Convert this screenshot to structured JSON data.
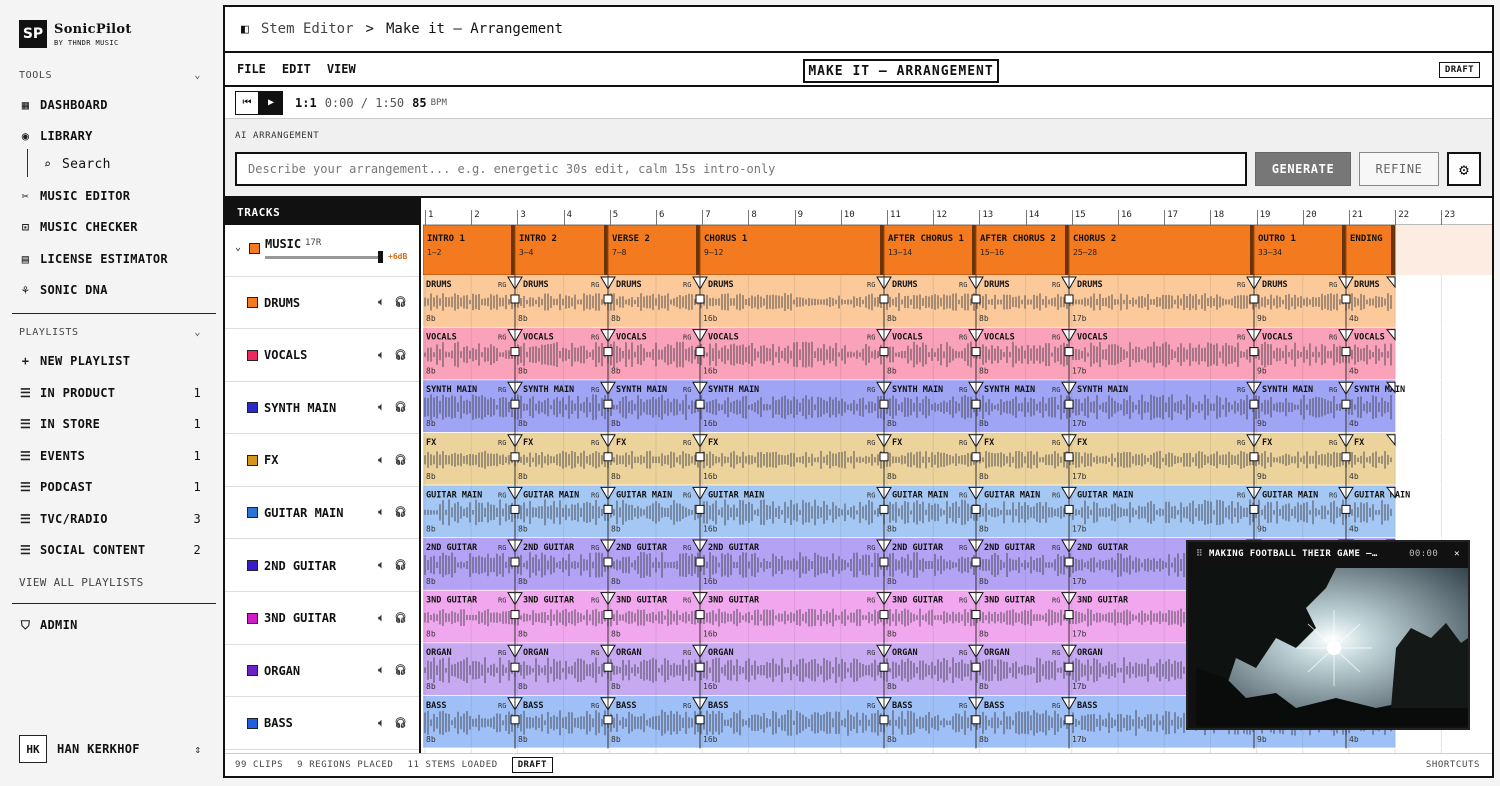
{
  "app": {
    "name": "SonicPilot",
    "sub": "BY THNDR MUSIC",
    "mark": "SP"
  },
  "sidebar": {
    "tools_label": "TOOLS",
    "tools": [
      {
        "label": "DASHBOARD",
        "icon": "grid-icon"
      },
      {
        "label": "LIBRARY",
        "icon": "library-icon"
      },
      {
        "label": "Search",
        "icon": "search-icon"
      },
      {
        "label": "MUSIC EDITOR",
        "icon": "scissors-icon"
      },
      {
        "label": "MUSIC CHECKER",
        "icon": "scan-icon"
      },
      {
        "label": "LICENSE ESTIMATOR",
        "icon": "calculator-icon"
      },
      {
        "label": "SONIC DNA",
        "icon": "dna-icon"
      }
    ],
    "playlists_label": "PLAYLISTS",
    "new_playlist": "NEW PLAYLIST",
    "playlists": [
      {
        "label": "IN PRODUCT",
        "count": "1"
      },
      {
        "label": "IN STORE",
        "count": "1"
      },
      {
        "label": "EVENTS",
        "count": "1"
      },
      {
        "label": "PODCAST",
        "count": "1"
      },
      {
        "label": "TVC/RADIO",
        "count": "3"
      },
      {
        "label": "SOCIAL CONTENT",
        "count": "2"
      }
    ],
    "view_all": "VIEW ALL PLAYLISTS",
    "admin": "ADMIN",
    "user": {
      "initials": "HK",
      "name": "HAN KERKHOF"
    }
  },
  "breadcrumb": {
    "parent": "Stem Editor",
    "sep": ">",
    "current": "Make it – Arrangement"
  },
  "menu": {
    "file": "FILE",
    "edit": "EDIT",
    "view": "VIEW",
    "title": "MAKE IT – ARRANGEMENT",
    "status": "DRAFT"
  },
  "transport": {
    "ratio": "1:1",
    "time": "0:00 / 1:50",
    "bpm": "85",
    "bpm_unit": "BPM"
  },
  "ai": {
    "label": "AI ARRANGEMENT",
    "placeholder": "Describe your arrangement... e.g. energetic 30s edit, calm 15s intro-only",
    "generate": "GENERATE",
    "refine": "REFINE"
  },
  "tracks_label": "TRACKS",
  "music_track": {
    "name": "MUSIC",
    "badge": "17R",
    "gain": "+6dB",
    "color": "#f47a1f"
  },
  "tracks": [
    {
      "name": "DRUMS",
      "color": "#f47a1f",
      "lane": "#fbc99a"
    },
    {
      "name": "VOCALS",
      "color": "#ee2a5c",
      "lane": "#f9a2b9"
    },
    {
      "name": "SYNTH MAIN",
      "color": "#2a2acb",
      "lane": "#a0a4f5"
    },
    {
      "name": "FX",
      "color": "#d8931e",
      "lane": "#ecd39b"
    },
    {
      "name": "GUITAR MAIN",
      "color": "#2a74d6",
      "lane": "#a4c8f3"
    },
    {
      "name": "2ND GUITAR",
      "color": "#3a1ccc",
      "lane": "#b4a3f5"
    },
    {
      "name": "3ND GUITAR",
      "color": "#d01cc6",
      "lane": "#f1a7ee"
    },
    {
      "name": "ORGAN",
      "color": "#6a21c8",
      "lane": "#c6a9f1"
    },
    {
      "name": "BASS",
      "color": "#1d5fe0",
      "lane": "#9fc0f6"
    }
  ],
  "ruler": [
    "1",
    "2",
    "3",
    "4",
    "5",
    "6",
    "7",
    "8",
    "9",
    "10",
    "11",
    "12",
    "13",
    "14",
    "15",
    "16",
    "17",
    "18",
    "19",
    "20",
    "21",
    "22",
    "23"
  ],
  "sections": [
    {
      "label": "INTRO 1",
      "range": "1–2"
    },
    {
      "label": "INTRO 2",
      "range": "3–4"
    },
    {
      "label": "VERSE 2",
      "range": "7–8"
    },
    {
      "label": "CHORUS 1",
      "range": "9–12"
    },
    {
      "label": "AFTER CHORUS 1",
      "range": "13–14"
    },
    {
      "label": "AFTER CHORUS 2",
      "range": "15–16"
    },
    {
      "label": "CHORUS 2",
      "range": "25–28"
    },
    {
      "label": "OUTRO 1",
      "range": "33–34"
    },
    {
      "label": "ENDING",
      "range": ""
    }
  ],
  "clip_bars": [
    "8b",
    "8b",
    "8b",
    "16b",
    "8b",
    "8b",
    "17b",
    "9b",
    "4b"
  ],
  "clip_tag": "RG",
  "footer": {
    "clips": "99 CLIPS",
    "regions": "9 REGIONS PLACED",
    "stems": "11 STEMS LOADED",
    "status": "DRAFT",
    "shortcuts": "SHORTCUTS"
  },
  "video": {
    "title": "MAKING FOOTBALL THEIR GAME –…",
    "time": "00:00"
  }
}
